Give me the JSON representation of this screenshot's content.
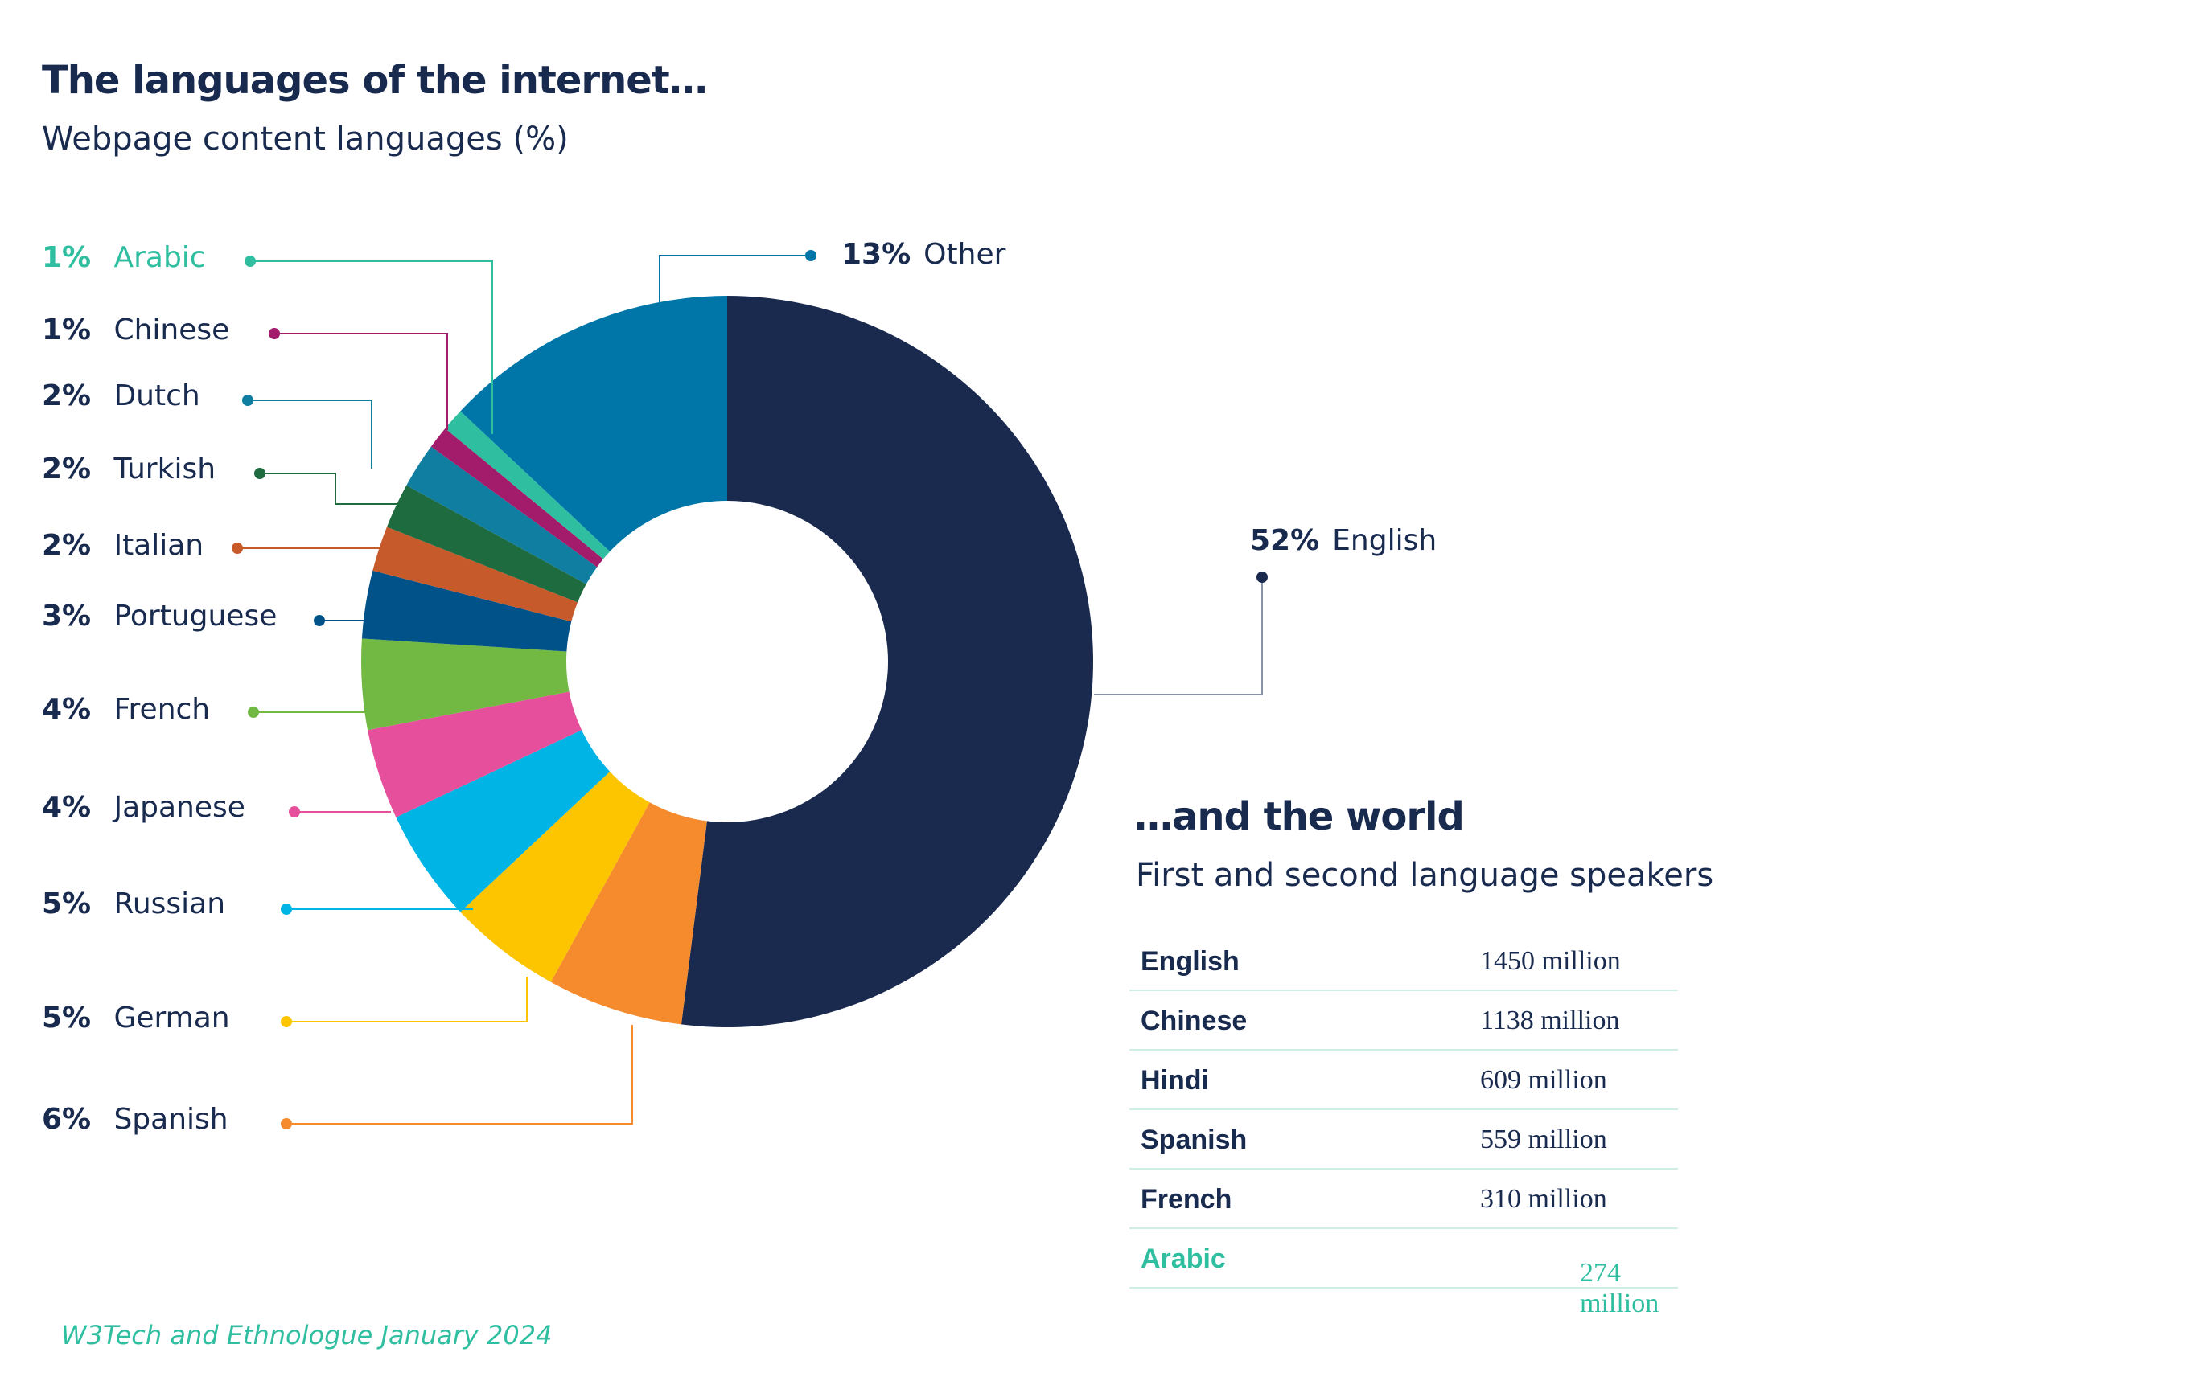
{
  "title": "The languages of the internet…",
  "subtitle": "Webpage content languages (%)",
  "chart_data": {
    "type": "pie",
    "variant": "donut",
    "title": "The languages of the internet…",
    "subtitle": "Webpage content languages (%)",
    "unit": "%",
    "slices": [
      {
        "label": "English",
        "value": 52,
        "pct_text": "52%",
        "color": "#1a2a4f"
      },
      {
        "label": "Spanish",
        "value": 6,
        "pct_text": "6%",
        "color": "#f68b2e"
      },
      {
        "label": "German",
        "value": 5,
        "pct_text": "5%",
        "color": "#fdc400"
      },
      {
        "label": "Russian",
        "value": 5,
        "pct_text": "5%",
        "color": "#00b4e5"
      },
      {
        "label": "Japanese",
        "value": 4,
        "pct_text": "4%",
        "color": "#e54f9b"
      },
      {
        "label": "French",
        "value": 4,
        "pct_text": "4%",
        "color": "#72b944"
      },
      {
        "label": "Portuguese",
        "value": 3,
        "pct_text": "3%",
        "color": "#005288"
      },
      {
        "label": "Italian",
        "value": 2,
        "pct_text": "2%",
        "color": "#c75a2b"
      },
      {
        "label": "Turkish",
        "value": 2,
        "pct_text": "2%",
        "color": "#1e6b40"
      },
      {
        "label": "Dutch",
        "value": 2,
        "pct_text": "2%",
        "color": "#0f7ea0"
      },
      {
        "label": "Chinese",
        "value": 1,
        "pct_text": "1%",
        "color": "#a31b6b"
      },
      {
        "label": "Arabic",
        "value": 1,
        "pct_text": "1%",
        "color": "#2fbfa0"
      },
      {
        "label": "Other",
        "value": 13,
        "pct_text": "13%",
        "color": "#0076a8"
      }
    ]
  },
  "legend": [
    {
      "pct": "1%",
      "name": "Arabic"
    },
    {
      "pct": "1%",
      "name": "Chinese"
    },
    {
      "pct": "2%",
      "name": "Dutch"
    },
    {
      "pct": "2%",
      "name": "Turkish"
    },
    {
      "pct": "2%",
      "name": "Italian"
    },
    {
      "pct": "3%",
      "name": "Portuguese"
    },
    {
      "pct": "4%",
      "name": "French"
    },
    {
      "pct": "4%",
      "name": "Japanese"
    },
    {
      "pct": "5%",
      "name": "Russian"
    },
    {
      "pct": "5%",
      "name": "German"
    },
    {
      "pct": "6%",
      "name": "Spanish"
    }
  ],
  "other_label": {
    "pct": "13%",
    "name": "Other"
  },
  "english_label": {
    "pct": "52%",
    "name": "English"
  },
  "world": {
    "title": "…and the world",
    "subtitle": "First and second language speakers",
    "rows": [
      {
        "name": "English",
        "value": "1450 million"
      },
      {
        "name": "Chinese",
        "value": "1138 million"
      },
      {
        "name": "Hindi",
        "value": "609 million"
      },
      {
        "name": "Spanish",
        "value": "559 million"
      },
      {
        "name": "French",
        "value": "310 million"
      },
      {
        "name": "Arabic",
        "value": "274 million"
      }
    ]
  },
  "source": "W3Tech and Ethnologue January 2024",
  "colors": {
    "navy": "#192a4f",
    "accent": "#2fbfa0"
  }
}
